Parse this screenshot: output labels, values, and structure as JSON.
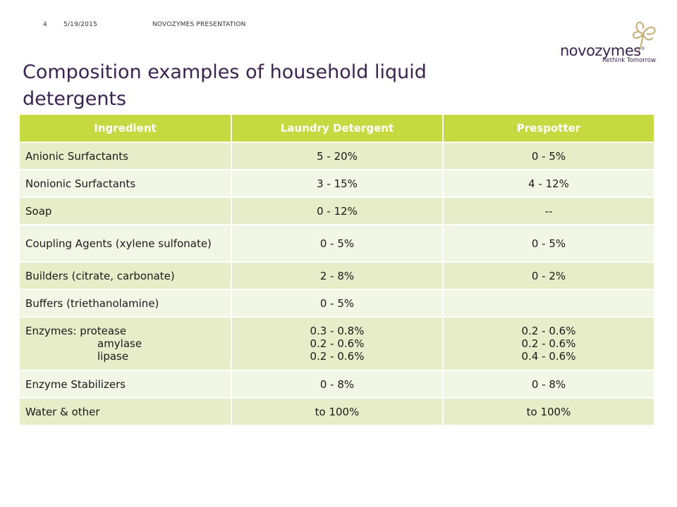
{
  "header": {
    "slide_number": "4",
    "date": "5/19/2015",
    "presentation": "NOVOZYMES PRESENTATION"
  },
  "logo": {
    "wordmark": "novozymes",
    "tagline": "Rethink Tomorrow",
    "icon": "clover-icon"
  },
  "title": "Composition examples of household liquid detergents",
  "colors": {
    "header_green": "#c5d940",
    "row_dark": "#e6edc8",
    "row_light": "#f2f6e4",
    "title_purple": "#3d2352"
  },
  "table": {
    "headers": [
      "Ingredient",
      "Laundry Detergent",
      "Prespotter"
    ],
    "rows": [
      {
        "ingredient": "Anionic Surfactants",
        "laundry": "5 - 20%",
        "prespotter": "0 - 5%"
      },
      {
        "ingredient": "Nonionic Surfactants",
        "laundry": "3 - 15%",
        "prespotter": "4 - 12%"
      },
      {
        "ingredient": "Soap",
        "laundry": "0 - 12%",
        "prespotter": "--"
      },
      {
        "ingredient": "Coupling Agents (xylene sulfonate)",
        "laundry": "0 - 5%",
        "prespotter": "0 - 5%"
      },
      {
        "ingredient": "Builders (citrate, carbonate)",
        "laundry": "2 - 8%",
        "prespotter": "0 - 2%"
      },
      {
        "ingredient": "Buffers (triethanolamine)",
        "laundry": "0 - 5%",
        "prespotter": ""
      },
      {
        "ingredient_lines": [
          "Enzymes:  protease",
          "amylase",
          "lipase"
        ],
        "laundry_lines": [
          "0.3 - 0.8%",
          "0.2 - 0.6%",
          "0.2 - 0.6%"
        ],
        "prespotter_lines": [
          "0.2 - 0.6%",
          "0.2 - 0.6%",
          "0.4 - 0.6%"
        ]
      },
      {
        "ingredient": "Enzyme Stabilizers",
        "laundry": "0 - 8%",
        "prespotter": "0 - 8%"
      },
      {
        "ingredient": "Water & other",
        "laundry": "to 100%",
        "prespotter": "to 100%"
      }
    ]
  }
}
